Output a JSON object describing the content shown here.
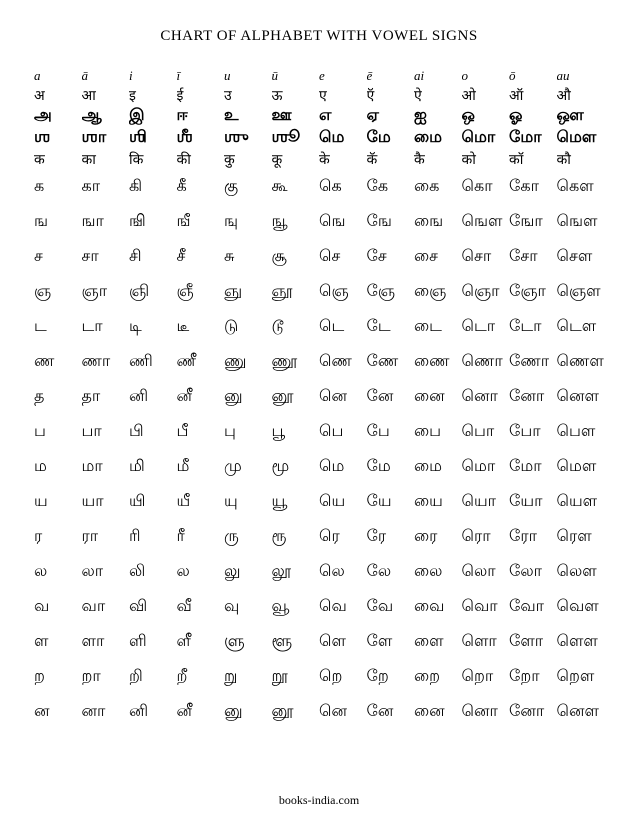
{
  "title": "CHART OF ALPHABET WITH VOWEL SIGNS",
  "footer": "books-india.com",
  "latin": [
    "a",
    "ā",
    "i",
    "ī",
    "u",
    "ū",
    "e",
    "ē",
    "ai",
    "o",
    "ō",
    "au"
  ],
  "dev1": [
    "अ",
    "आ",
    "इ",
    "ई",
    "उ",
    "ऊ",
    "ए",
    "ऍ",
    "ऐ",
    "ओ",
    "ऑ",
    "औ"
  ],
  "bold1": [
    "அ",
    "ஆ",
    "இ",
    "ஈ",
    "உ",
    "ஊ",
    "எ",
    "ஏ",
    "ஐ",
    "ஒ",
    "ஓ",
    "ஔ"
  ],
  "bold2": [
    "ஶ",
    "ஶா",
    "ஶி",
    "ஶீ",
    "ஶு",
    "ஶூ",
    "மெ",
    "மே",
    "மை",
    "மொ",
    "மோ",
    "மௌ"
  ],
  "dev2": [
    "क",
    "का",
    "कि",
    "की",
    "कु",
    "कू",
    "के",
    "कॅ",
    "कै",
    "को",
    "कॉ",
    "कौ"
  ],
  "body": [
    [
      "க",
      "கா",
      "கி",
      "கீ",
      "கு",
      "கூ",
      "கெ",
      "கே",
      "கை",
      "கொ",
      "கோ",
      "கௌ"
    ],
    [
      "ங",
      "ஙா",
      "ஙி",
      "ஙீ",
      "ஙு",
      "ஙூ",
      "ஙெ",
      "ஙே",
      "ஙை",
      "ஙௌ",
      "ஙோ",
      "ஙௌ"
    ],
    [
      "ச",
      "சா",
      "சி",
      "சீ",
      "சு",
      "சூ",
      "செ",
      "சே",
      "சை",
      "சொ",
      "சோ",
      "சௌ"
    ],
    [
      "ஞ",
      "ஞா",
      "ஞி",
      "ஞீ",
      "ஞு",
      "ஞூ",
      "ஞெ",
      "ஞே",
      "ஞை",
      "ஞொ",
      "ஞோ",
      "ஞௌ"
    ],
    [
      "ட",
      "டா",
      "டி",
      "டீ",
      "டு",
      "டூ",
      "டெ",
      "டே",
      "டை",
      "டொ",
      "டோ",
      "டௌ"
    ],
    [
      "ண",
      "ணா",
      "ணி",
      "ணீ",
      "ணு",
      "ணூ",
      "ணெ",
      "ணே",
      "ணை",
      "ணொ",
      "ணோ",
      "ணௌ"
    ],
    [
      "த",
      "தா",
      "னி",
      "னீ",
      "னு",
      "னூ",
      "னெ",
      "னே",
      "னை",
      "னொ",
      "னோ",
      "னௌ"
    ],
    [
      "ப",
      "பா",
      "பி",
      "பீ",
      "பு",
      "பூ",
      "பெ",
      "பே",
      "பை",
      "பொ",
      "போ",
      "பௌ"
    ],
    [
      "ம",
      "மா",
      "மி",
      "மீ",
      "மு",
      "மூ",
      "மெ",
      "மே",
      "மை",
      "மொ",
      "மோ",
      "மௌ"
    ],
    [
      "ய",
      "யா",
      "யி",
      "யீ",
      "யு",
      "யூ",
      "யெ",
      "யே",
      "யை",
      "யொ",
      "யோ",
      "யௌ"
    ],
    [
      "ர",
      "ரா",
      "ரி",
      "ரீ",
      "ரு",
      "ரூ",
      "ரெ",
      "ரே",
      "ரை",
      "ரொ",
      "ரோ",
      "ரௌ"
    ],
    [
      "ல",
      "லா",
      "லி",
      "ல",
      "லு",
      "லூ",
      "லெ",
      "லே",
      "லை",
      "லொ",
      "லோ",
      "லௌ"
    ],
    [
      "வ",
      "வா",
      "வி",
      "வீ",
      "வு",
      "வூ",
      "வெ",
      "வே",
      "வை",
      "வொ",
      "வோ",
      "வௌ"
    ],
    [
      "ள",
      "ளா",
      "ளி",
      "ளீ",
      "ளு",
      "ளூ",
      "ளெ",
      "ளே",
      "ளை",
      "ளொ",
      "ளோ",
      "ளௌ"
    ],
    [
      "ற",
      "றா",
      "றி",
      "றீ",
      "று",
      "றூ",
      "றெ",
      "றே",
      "றை",
      "றொ",
      "றோ",
      "றௌ"
    ],
    [
      "ன",
      "னா",
      "னி",
      "னீ",
      "னு",
      "னூ",
      "னெ",
      "னே",
      "னை",
      "னொ",
      "னோ",
      "னௌ"
    ]
  ]
}
